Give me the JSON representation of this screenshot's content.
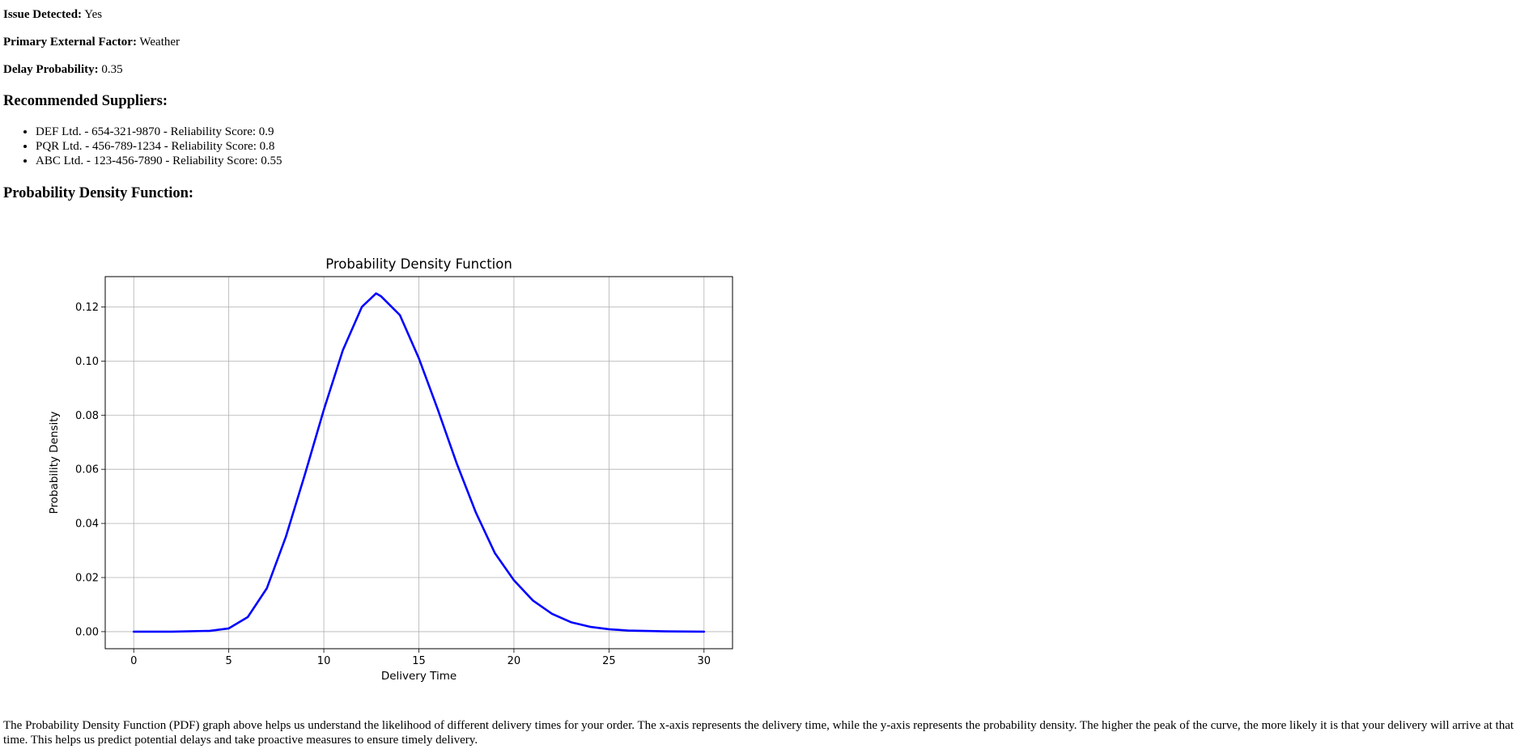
{
  "fields": {
    "issue": {
      "label": "Issue Detected:",
      "value": "Yes"
    },
    "factor": {
      "label": "Primary External Factor:",
      "value": "Weather"
    },
    "delay": {
      "label": "Delay Probability:",
      "value": "0.35"
    }
  },
  "suppliers": {
    "heading": "Recommended Suppliers:",
    "items": [
      "DEF Ltd. - 654-321-9870 - Reliability Score: 0.9",
      "PQR Ltd. - 456-789-1234 - Reliability Score: 0.8",
      "ABC Ltd. - 123-456-7890 - Reliability Score: 0.55"
    ]
  },
  "pdf_heading": "Probability Density Function:",
  "chart_data": {
    "type": "line",
    "title": "Probability Density Function",
    "xlabel": "Delivery Time",
    "ylabel": "Probability Density",
    "xlim": [
      -1.5,
      31.5
    ],
    "ylim": [
      -0.0063,
      0.1312
    ],
    "xticks": [
      "0",
      "5",
      "10",
      "15",
      "20",
      "25",
      "30"
    ],
    "yticks": [
      "0.00",
      "0.02",
      "0.04",
      "0.06",
      "0.08",
      "0.10",
      "0.12"
    ],
    "grid": true,
    "color": "#0000ff",
    "series": [
      {
        "x": [
          0,
          2,
          4,
          5,
          6,
          7,
          8,
          9,
          10,
          11,
          12,
          12.75,
          13,
          14,
          15,
          16,
          17,
          18,
          19,
          20,
          21,
          22,
          23,
          24,
          25,
          26,
          28,
          30
        ],
        "values": [
          0.0,
          0.0,
          0.0003,
          0.0012,
          0.0054,
          0.016,
          0.035,
          0.058,
          0.082,
          0.104,
          0.12,
          0.125,
          0.124,
          0.117,
          0.101,
          0.082,
          0.062,
          0.044,
          0.029,
          0.019,
          0.0115,
          0.0066,
          0.0035,
          0.0018,
          0.0009,
          0.0004,
          0.0001,
          0.0
        ]
      }
    ]
  },
  "description": "The Probability Density Function (PDF) graph above helps us understand the likelihood of different delivery times for your order. The x-axis represents the delivery time, while the y-axis represents the probability density. The higher the peak of the curve, the more likely it is that your delivery will arrive at that time. This helps us predict potential delays and take proactive measures to ensure timely delivery."
}
